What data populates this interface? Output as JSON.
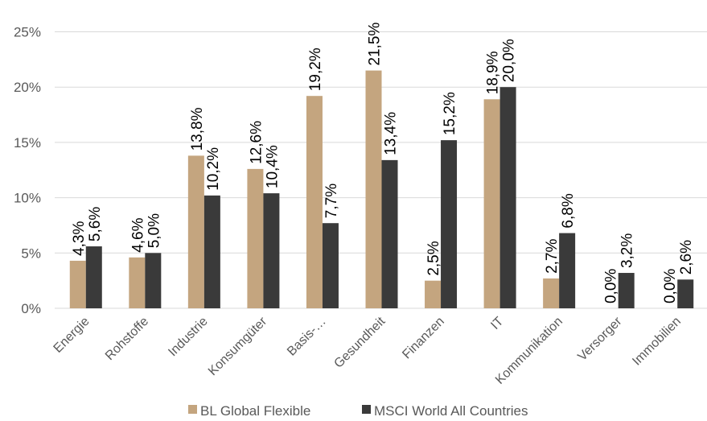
{
  "chart_data": {
    "type": "bar",
    "categories": [
      "Energie",
      "Rohstoffe",
      "Industrie",
      "Konsumgüter",
      "Basis-…",
      "Gesundheit",
      "Finanzen",
      "IT",
      "Kommunikation",
      "Versorger",
      "Immobilien"
    ],
    "series": [
      {
        "name": "BL Global Flexible",
        "color": "#c4a57f",
        "values": [
          4.3,
          4.6,
          13.8,
          12.6,
          19.2,
          21.5,
          2.5,
          18.9,
          2.7,
          0.0,
          0.0
        ],
        "labels": [
          "4,3%",
          "4,6%",
          "13,8%",
          "12,6%",
          "19,2%",
          "21,5%",
          "2,5%",
          "18,9%",
          "2,7%",
          "0,0%",
          "0,0%"
        ]
      },
      {
        "name": "MSCI World All Countries",
        "color": "#3a3a3a",
        "values": [
          5.6,
          5.0,
          10.2,
          10.4,
          7.7,
          13.4,
          15.2,
          20.0,
          6.8,
          3.2,
          2.6
        ],
        "labels": [
          "5,6%",
          "5,0%",
          "10,2%",
          "10,4%",
          "7,7%",
          "13,4%",
          "15,2%",
          "20,0%",
          "6,8%",
          "3,2%",
          "2,6%"
        ]
      }
    ],
    "ylim": [
      0,
      25
    ],
    "yticks": [
      0,
      5,
      10,
      15,
      20,
      25
    ],
    "ytick_labels": [
      "0%",
      "5%",
      "10%",
      "15%",
      "20%",
      "25%"
    ],
    "grid": true,
    "legend_position": "bottom"
  }
}
